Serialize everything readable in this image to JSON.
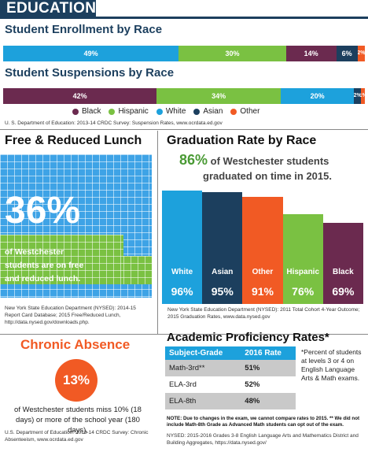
{
  "header": {
    "title": "EDUCATION"
  },
  "enrollment": {
    "title": "Student Enrollment by Race",
    "segments": [
      {
        "name": "White",
        "value": 49,
        "label": "49%",
        "color": "#1da1dc"
      },
      {
        "name": "Hispanic",
        "value": 30,
        "label": "30%",
        "color": "#7ac142"
      },
      {
        "name": "Black",
        "value": 14,
        "label": "14%",
        "color": "#6b2a4f"
      },
      {
        "name": "Asian",
        "value": 6,
        "label": "6%",
        "color": "#1c3f5e"
      },
      {
        "name": "Other",
        "value": 2,
        "label": "2%",
        "color": "#f15a24"
      }
    ]
  },
  "suspensions": {
    "title": "Student Suspensions by Race",
    "segments": [
      {
        "name": "Black",
        "value": 42,
        "label": "42%",
        "color": "#6b2a4f"
      },
      {
        "name": "Hispanic",
        "value": 34,
        "label": "34%",
        "color": "#7ac142"
      },
      {
        "name": "White",
        "value": 20,
        "label": "20%",
        "color": "#1da1dc"
      },
      {
        "name": "Asian",
        "value": 2,
        "label": "2%",
        "color": "#1c3f5e"
      },
      {
        "name": "Other",
        "value": 1,
        "label": "1%",
        "color": "#f15a24"
      }
    ]
  },
  "legend": [
    {
      "label": "Black",
      "color": "#6b2a4f"
    },
    {
      "label": "Hispanic",
      "color": "#7ac142"
    },
    {
      "label": "White",
      "color": "#1da1dc"
    },
    {
      "label": "Asian",
      "color": "#1c3f5e"
    },
    {
      "label": "Other",
      "color": "#f15a24"
    }
  ],
  "source_top": "U. S. Department of Education: 2013-14 CRDC Survey: Suspension Rates, www.ocrdata.ed.gov",
  "lunch": {
    "title": "Free & Reduced Lunch",
    "value": 36,
    "big": "36%",
    "line1": "of Westchester",
    "line2": "students are on free",
    "line3": "and reduced lunch.",
    "source": "New York State Education Department (NYSED): 2014-15 Report Card Database; 2015 Free/Reduced Lunch, http://data.nysed.gov/downloads.php."
  },
  "graduation": {
    "title": "Graduation Rate by Race",
    "big": "86%",
    "text1": "of Westchester students",
    "text2": "graduated on time in 2015.",
    "source": "New York State Education Department (NYSED): 2011 Total Cohort 4-Year Outcome; 2015 Graduation Rates, www.data.nysed.gov"
  },
  "chart_data": [
    {
      "type": "bar",
      "title": "Graduation Rate by Race",
      "categories": [
        "White",
        "Asian",
        "Other",
        "Hispanic",
        "Black"
      ],
      "values": [
        96,
        95,
        91,
        76,
        69
      ],
      "labels": [
        "96%",
        "95%",
        "91%",
        "76%",
        "69%"
      ],
      "colors": [
        "#1da1dc",
        "#1c3f5e",
        "#f15a24",
        "#7ac142",
        "#6b2a4f"
      ]
    }
  ],
  "absence": {
    "title": "Chronic Absence",
    "big": "13%",
    "text": "of Westchester students miss 10% (18 days) or more of the school year (180 days).",
    "source": "U.S. Department of Education: 2013-14 CRDC Survey: Chronic Absenteeism, www.ocrdata.ed.gov"
  },
  "proficiency": {
    "title": "Academic Proficiency Rates*",
    "col1": "Subject-Grade",
    "col2": "2016 Rate",
    "rows": [
      {
        "subject": "Math-3rd**",
        "rate": "51%"
      },
      {
        "subject": "ELA-3rd",
        "rate": "52%"
      },
      {
        "subject": "ELA-8th",
        "rate": "48%"
      }
    ],
    "footnote": "*Percent of students at levels 3 or 4 on English Language Arts & Math exams.",
    "note": "NOTE: Due to changes in the exam, we cannot compare rates to 2015.  ** We did not include Math-8th Grade as Advanced Math students can opt out of the exam.",
    "source": "NYSED: 2015-2016 Grades 3-8 English Language Arts and Mathematics District and Building Aggregates, https://data.nysed.gov/"
  }
}
